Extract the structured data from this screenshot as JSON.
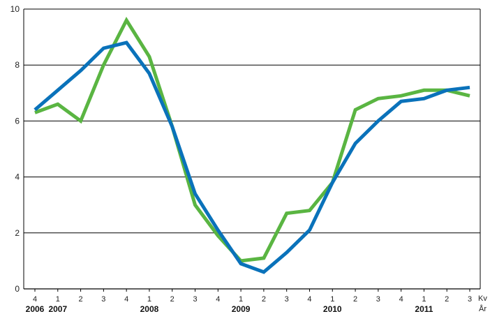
{
  "chart_data": {
    "type": "line",
    "ylim": [
      0,
      10
    ],
    "yticks": [
      "0",
      "2",
      "4",
      "6",
      "8",
      "10"
    ],
    "grid": true,
    "quarters": [
      "4",
      "1",
      "2",
      "3",
      "4",
      "1",
      "2",
      "3",
      "4",
      "1",
      "2",
      "3",
      "4",
      "1",
      "2",
      "3",
      "4",
      "1",
      "2",
      "3"
    ],
    "years": [
      {
        "label": "2006",
        "index": 0
      },
      {
        "label": "2007",
        "index": 1
      },
      {
        "label": "2008",
        "index": 5
      },
      {
        "label": "2009",
        "index": 9
      },
      {
        "label": "2010",
        "index": 13
      },
      {
        "label": "2011",
        "index": 17
      }
    ],
    "x_axis_label_quarter": "Kv",
    "x_axis_label_year": "År",
    "colors": {
      "blue": "#0a72ba",
      "green": "#5ab542",
      "grid": "#000000"
    },
    "series": [
      {
        "color": "#5ab542",
        "values": [
          6.3,
          6.6,
          6.0,
          8.0,
          9.6,
          8.3,
          5.8,
          3.0,
          1.9,
          1.0,
          1.1,
          2.7,
          2.8,
          3.8,
          6.4,
          6.8,
          6.9,
          7.1,
          7.1,
          6.9
        ]
      },
      {
        "color": "#0a72ba",
        "values": [
          6.4,
          7.1,
          7.8,
          8.6,
          8.8,
          7.7,
          5.8,
          3.4,
          2.1,
          0.9,
          0.6,
          1.3,
          2.1,
          3.8,
          5.2,
          6.0,
          6.7,
          6.8,
          7.1,
          7.2
        ]
      }
    ]
  }
}
